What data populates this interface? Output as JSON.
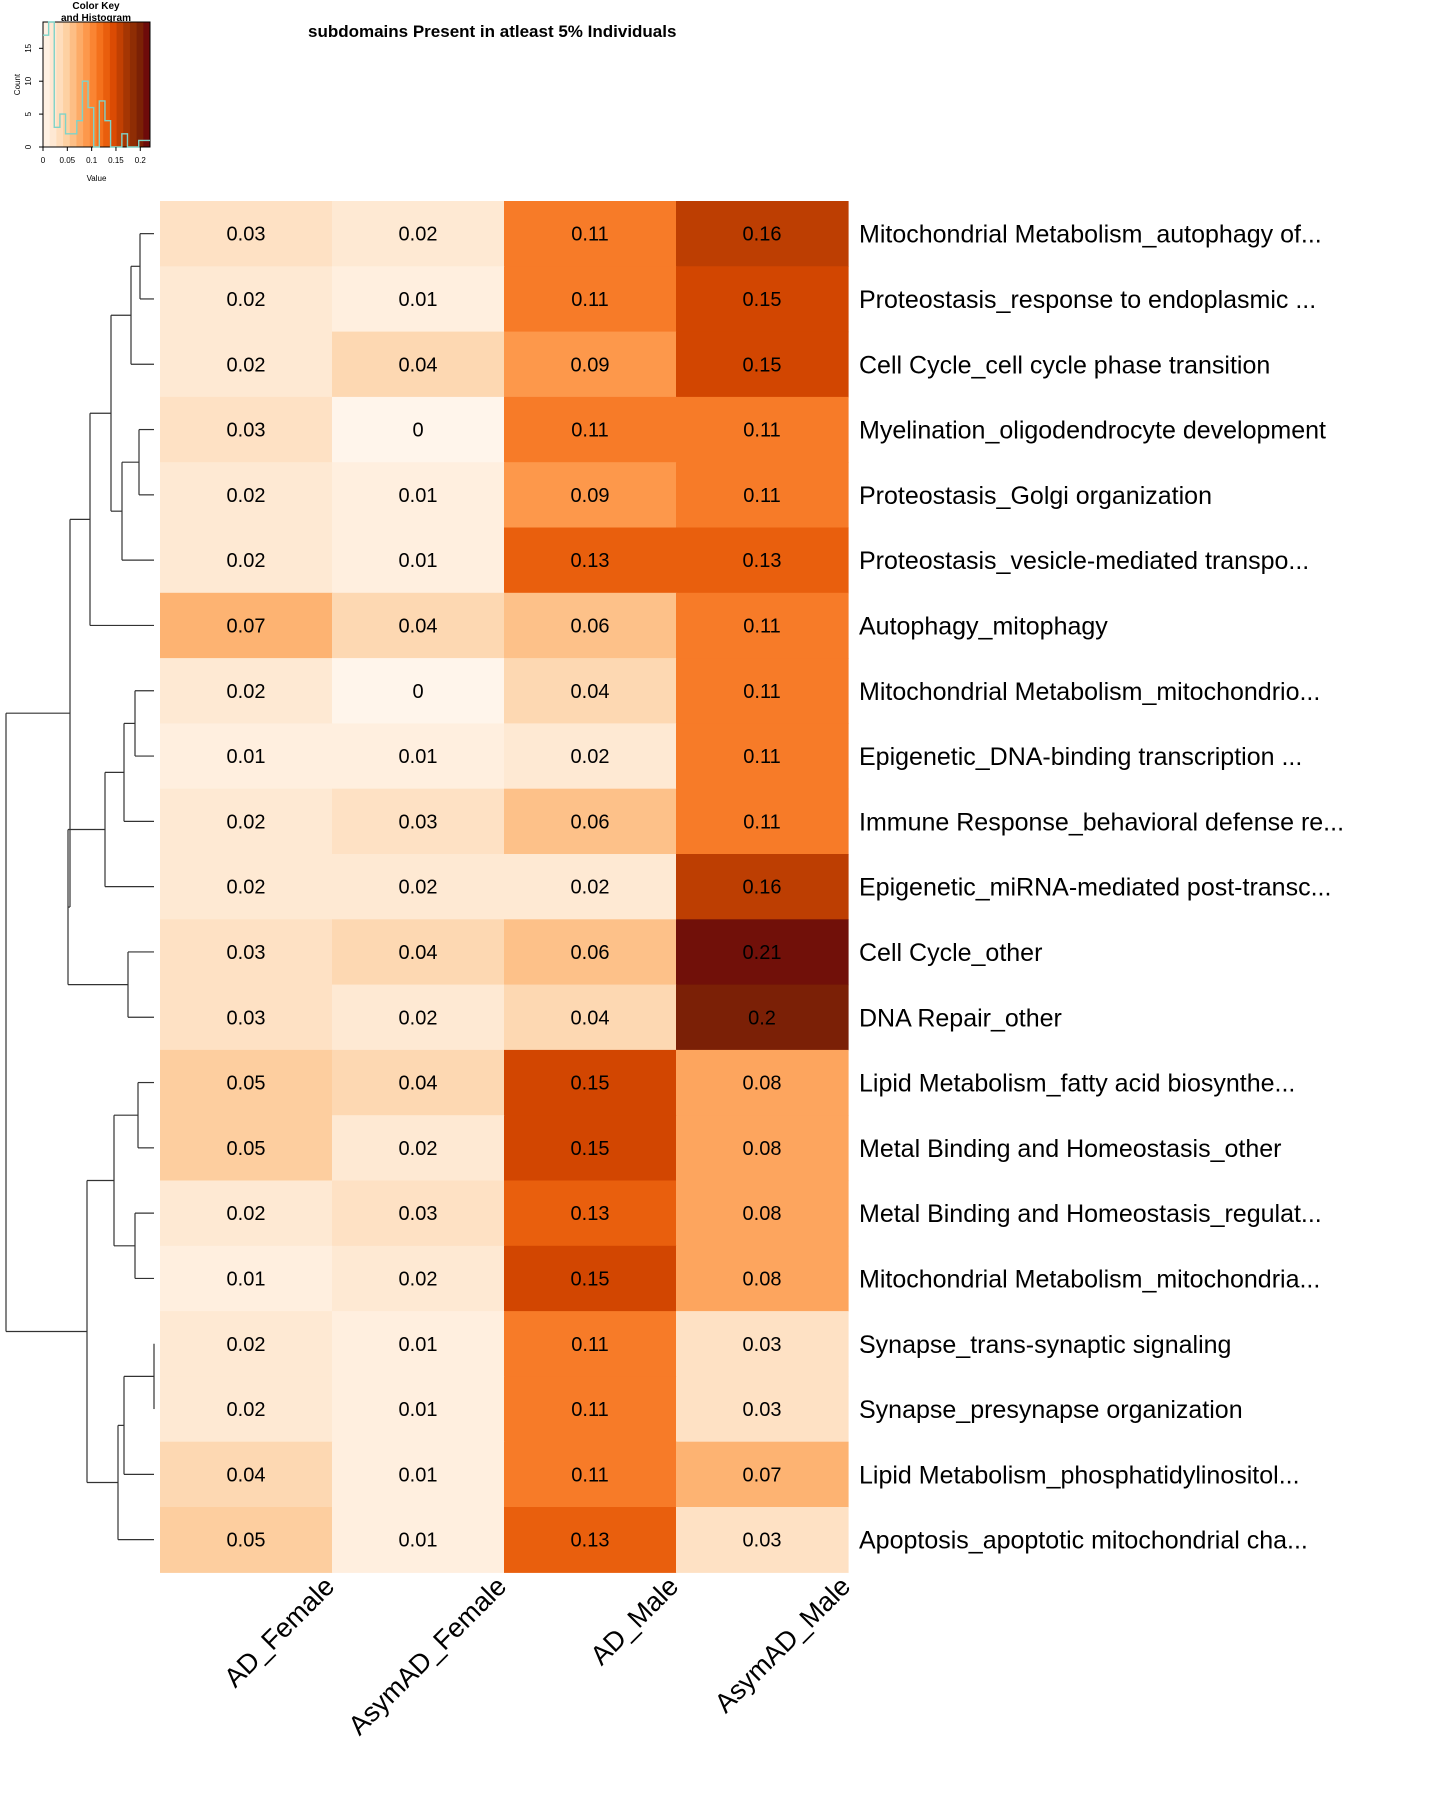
{
  "chart_data": {
    "type": "heatmap",
    "title": "subdomains Present in atleast 5% Individuals",
    "columns": [
      "AD_Female",
      "AsymAD_Female",
      "AD_Male",
      "AsymAD_Male"
    ],
    "rows": [
      "Mitochondrial Metabolism_autophagy of...",
      "Proteostasis_response to endoplasmic ...",
      "Cell Cycle_cell cycle phase transition",
      "Myelination_oligodendrocyte development",
      "Proteostasis_Golgi organization",
      "Proteostasis_vesicle-mediated transpo...",
      "Autophagy_mitophagy",
      "Mitochondrial Metabolism_mitochondrio...",
      "Epigenetic_DNA-binding transcription ...",
      "Immune Response_behavioral defense re...",
      "Epigenetic_miRNA-mediated post-transc...",
      "Cell Cycle_other",
      "DNA Repair_other",
      "Lipid Metabolism_fatty acid biosynthe...",
      "Metal Binding and Homeostasis_other",
      "Metal Binding and Homeostasis_regulat...",
      "Mitochondrial Metabolism_mitochondria...",
      "Synapse_trans-synaptic signaling",
      "Synapse_presynapse organization",
      "Lipid Metabolism_phosphatidylinositol...",
      "Apoptosis_apoptotic mitochondrial cha..."
    ],
    "values": [
      [
        0.03,
        0.02,
        0.11,
        0.16
      ],
      [
        0.02,
        0.01,
        0.11,
        0.15
      ],
      [
        0.02,
        0.04,
        0.09,
        0.15
      ],
      [
        0.03,
        0,
        0.11,
        0.11
      ],
      [
        0.02,
        0.01,
        0.09,
        0.11
      ],
      [
        0.02,
        0.01,
        0.13,
        0.13
      ],
      [
        0.07,
        0.04,
        0.06,
        0.11
      ],
      [
        0.02,
        0,
        0.04,
        0.11
      ],
      [
        0.01,
        0.01,
        0.02,
        0.11
      ],
      [
        0.02,
        0.03,
        0.06,
        0.11
      ],
      [
        0.02,
        0.02,
        0.02,
        0.16
      ],
      [
        0.03,
        0.04,
        0.06,
        0.21
      ],
      [
        0.03,
        0.02,
        0.04,
        0.2
      ],
      [
        0.05,
        0.04,
        0.15,
        0.08
      ],
      [
        0.05,
        0.02,
        0.15,
        0.08
      ],
      [
        0.02,
        0.03,
        0.13,
        0.08
      ],
      [
        0.01,
        0.02,
        0.15,
        0.08
      ],
      [
        0.02,
        0.01,
        0.11,
        0.03
      ],
      [
        0.02,
        0.01,
        0.11,
        0.03
      ],
      [
        0.04,
        0.01,
        0.11,
        0.07
      ],
      [
        0.05,
        0.01,
        0.13,
        0.03
      ]
    ],
    "color_scale": [
      "#fff5eb",
      "#fee6ce",
      "#fdd0a2",
      "#fdae6b",
      "#fd8d3c",
      "#f16913",
      "#d94801",
      "#a63603",
      "#7f2704",
      "#67000d"
    ],
    "value_range": [
      0,
      0.22
    ],
    "color_key": {
      "title_line1": "Color Key",
      "title_line2": "and Histogram",
      "xlabel": "Value",
      "ylabel": "Count",
      "x_ticks": [
        "0",
        "0.05",
        "0.1",
        "0.15",
        "0.2"
      ],
      "x_tick_values": [
        0,
        0.05,
        0.1,
        0.15,
        0.2
      ],
      "y_ticks": [
        "0",
        "5",
        "10",
        "15"
      ],
      "y_tick_values": [
        0,
        5,
        10,
        15
      ],
      "y_max": 19,
      "histogram_counts": [
        17,
        19,
        3,
        5,
        2,
        2,
        4,
        10,
        6,
        0,
        7,
        4,
        0,
        0,
        2,
        0,
        0,
        1,
        1
      ],
      "line_color": "#7fd3c8"
    },
    "dendrogram": "hierarchical clustering of rows (left side)"
  }
}
